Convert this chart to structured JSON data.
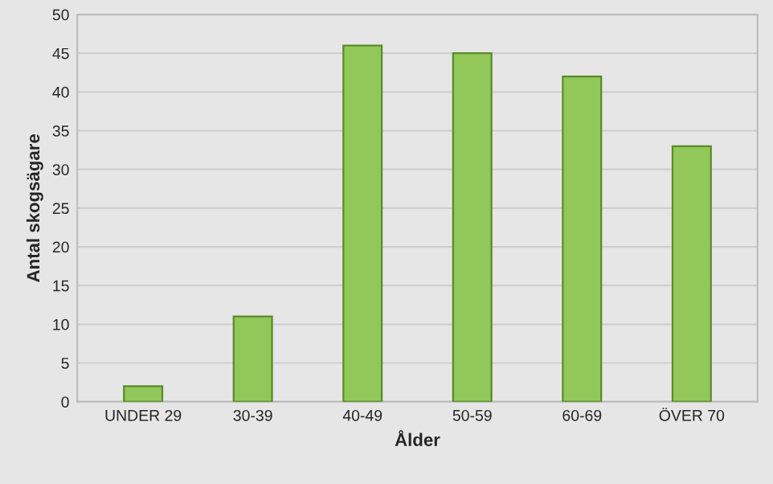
{
  "chart_data": {
    "type": "bar",
    "xlabel": "Ålder",
    "ylabel": "Antal skogsägare",
    "categories": [
      "UNDER 29",
      "30-39",
      "40-49",
      "50-59",
      "60-69",
      "ÖVER 70"
    ],
    "values": [
      2,
      11,
      46,
      45,
      42,
      33
    ],
    "color": "#92c85a",
    "ylim": [
      0,
      50
    ],
    "yticks": [
      0,
      5,
      10,
      15,
      20,
      25,
      30,
      35,
      40,
      45,
      50
    ],
    "grid": "y"
  }
}
